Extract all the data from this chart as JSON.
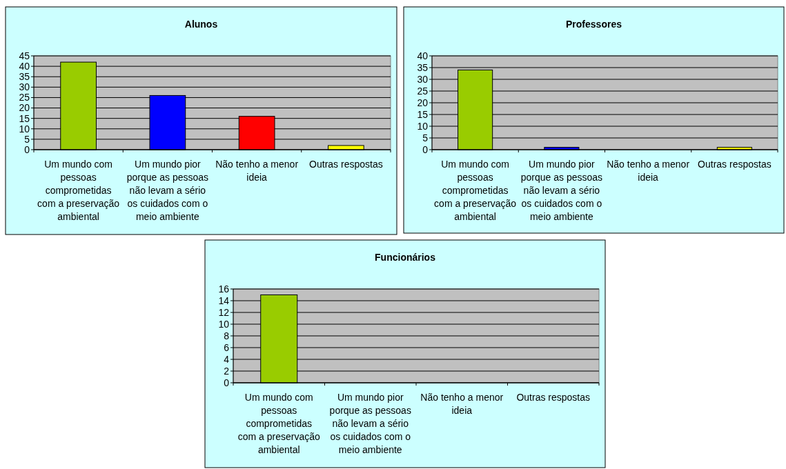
{
  "chart_data": [
    {
      "type": "bar",
      "title": "Alunos",
      "categories": [
        "Um mundo com pessoas comprometidas com a preservação ambiental",
        "Um mundo pior porque as pessoas não levam a sério os cuidados com o meio ambiente",
        "Não tenho a menor ideia",
        "Outras respostas"
      ],
      "values": [
        42,
        26,
        16,
        2
      ],
      "colors": [
        "#99cc00",
        "#0000ff",
        "#ff0000",
        "#ffff00"
      ],
      "ylim": [
        0,
        45
      ],
      "yticks": [
        0,
        5,
        10,
        15,
        20,
        25,
        30,
        35,
        40,
        45
      ],
      "grid": "y"
    },
    {
      "type": "bar",
      "title": "Professores",
      "categories": [
        "Um mundo com pessoas comprometidas com a preservação ambiental",
        "Um mundo pior porque as pessoas não levam a sério os cuidados com o meio ambiente",
        "Não tenho a menor ideia",
        "Outras respostas"
      ],
      "values": [
        34,
        1,
        0,
        1
      ],
      "colors": [
        "#99cc00",
        "#0000ff",
        "#ff0000",
        "#ffff00"
      ],
      "ylim": [
        0,
        40
      ],
      "yticks": [
        0,
        5,
        10,
        15,
        20,
        25,
        30,
        35,
        40
      ],
      "grid": "y"
    },
    {
      "type": "bar",
      "title": "Funcionários",
      "categories": [
        "Um mundo com pessoas comprometidas com a preservação ambiental",
        "Um mundo pior porque as pessoas não levam a sério os cuidados com o meio ambiente",
        "Não tenho a menor ideia",
        "Outras respostas"
      ],
      "values": [
        15,
        0,
        0,
        0
      ],
      "colors": [
        "#99cc00",
        "#0000ff",
        "#ff0000",
        "#ffff00"
      ],
      "ylim": [
        0,
        16
      ],
      "yticks": [
        0,
        2,
        4,
        6,
        8,
        10,
        12,
        14,
        16
      ],
      "grid": "y"
    }
  ]
}
